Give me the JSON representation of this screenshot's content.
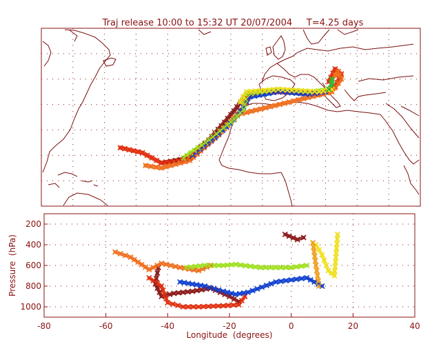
{
  "chart_data": [
    {
      "type": "map",
      "title": "Traj release 10:00 to 15:32 UT 20/07/2004     T=4.25 days",
      "xlim": [
        -80,
        40
      ],
      "ylim": [
        0,
        70
      ],
      "grid": true,
      "series": [
        {
          "color": "#8b1a1a",
          "x": [
            -42,
            -33,
            -27,
            -22,
            -18,
            -16
          ],
          "y": [
            17,
            19,
            26,
            33,
            39,
            43
          ]
        },
        {
          "color": "#e03010",
          "x": [
            -55,
            -48,
            -42,
            -35,
            -27,
            -20,
            -16,
            -14,
            -10,
            0,
            8,
            13,
            15,
            13,
            11
          ],
          "y": [
            23,
            21,
            17,
            18,
            25,
            33,
            39,
            44,
            45,
            45,
            44,
            47,
            52,
            54,
            49
          ]
        },
        {
          "color": "#f07020",
          "x": [
            -47,
            -42,
            -33,
            -24,
            -18,
            12,
            15,
            14,
            12
          ],
          "y": [
            16,
            15,
            18,
            28,
            36,
            45,
            50,
            53,
            50
          ]
        },
        {
          "color": "#1040d0",
          "x": [
            -32,
            -25,
            -19,
            -16,
            -14,
            -5,
            5,
            10
          ],
          "y": [
            20,
            27,
            34,
            39,
            43,
            45,
            44,
            45
          ]
        },
        {
          "color": "#a0e020",
          "x": [
            -35,
            -28,
            -20,
            -16,
            -15,
            -5,
            5,
            12
          ],
          "y": [
            19,
            25,
            33,
            38,
            44,
            46,
            45,
            46
          ]
        },
        {
          "color": "#f0e020",
          "x": [
            -17,
            -15,
            -5,
            8,
            12
          ],
          "y": [
            41,
            45,
            46,
            45,
            46
          ]
        },
        {
          "color": "#20c030",
          "x": [
            11,
            12,
            12
          ],
          "y": [
            46,
            48,
            50
          ]
        }
      ]
    },
    {
      "type": "scatter",
      "xlabel": "Longitude  (degrees)",
      "ylabel": "Pressure  (hPa)",
      "xlim": [
        -80,
        40
      ],
      "ylim": [
        1100,
        100
      ],
      "xticks": [
        "-80",
        "-60",
        "-40",
        "-20",
        "0",
        "20",
        "40"
      ],
      "yticks": [
        "200",
        "400",
        "600",
        "800",
        "1000"
      ],
      "grid": true,
      "series": [
        {
          "color": "#8b1a1a",
          "x": [
            -43,
            -44,
            -42,
            -38,
            -32,
            -26,
            -20,
            -17
          ],
          "y": [
            620,
            780,
            900,
            870,
            850,
            820,
            900,
            950
          ]
        },
        {
          "color": "#8b1a1a",
          "x": [
            -2,
            2,
            4
          ],
          "y": [
            300,
            350,
            330
          ]
        },
        {
          "color": "#e03010",
          "x": [
            -46,
            -42,
            -40,
            -35,
            -30,
            -22,
            -17,
            -15
          ],
          "y": [
            720,
            800,
            960,
            1000,
            1000,
            990,
            980,
            900
          ]
        },
        {
          "color": "#f07020",
          "x": [
            -57,
            -52,
            -46,
            -42,
            -36,
            -30,
            -26
          ],
          "y": [
            470,
            520,
            640,
            580,
            620,
            650,
            600
          ]
        },
        {
          "color": "#1040d0",
          "x": [
            -36,
            -32,
            -28,
            -22,
            -18,
            -14,
            -5,
            5,
            10
          ],
          "y": [
            760,
            780,
            800,
            850,
            880,
            860,
            760,
            720,
            800
          ]
        },
        {
          "color": "#a0e020",
          "x": [
            -34,
            -28,
            -22,
            -18,
            -10,
            0,
            5
          ],
          "y": [
            620,
            600,
            600,
            590,
            620,
            620,
            600
          ]
        },
        {
          "color": "#f0e020",
          "x": [
            8,
            10,
            12,
            14,
            15
          ],
          "y": [
            400,
            500,
            650,
            700,
            300
          ]
        },
        {
          "color": "#f0a020",
          "x": [
            7,
            8,
            9
          ],
          "y": [
            380,
            600,
            800
          ]
        }
      ]
    }
  ]
}
